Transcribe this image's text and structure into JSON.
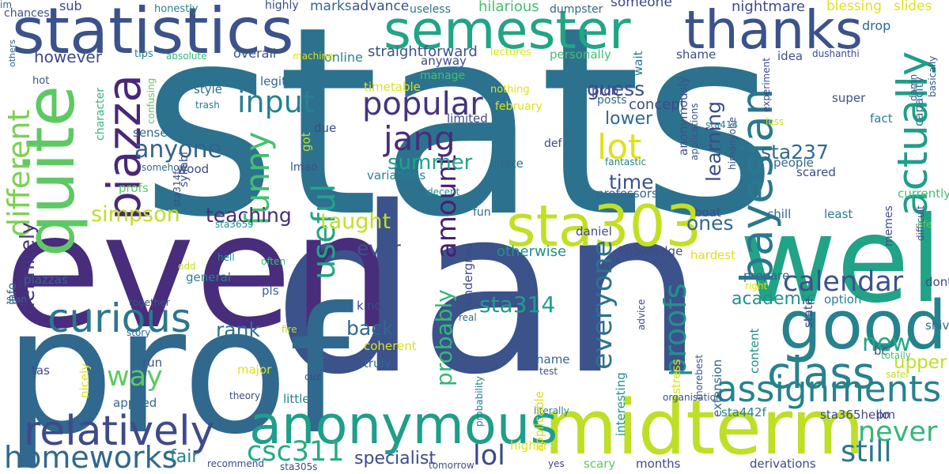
{
  "words": [
    {
      "text": "stats",
      "color": "#2c728e"
    },
    {
      "text": "dan",
      "color": "#3b528b"
    },
    {
      "text": "even",
      "color": "#472d7b"
    },
    {
      "text": "prof",
      "color": "#31688e"
    },
    {
      "text": "midterm",
      "color": "#bddf26"
    },
    {
      "text": "well",
      "color": "#20a386"
    },
    {
      "text": "statistics",
      "color": "#3b528b"
    },
    {
      "text": "quite",
      "color": "#5ec962"
    },
    {
      "text": "semester",
      "color": "#21a585"
    },
    {
      "text": "thanks",
      "color": "#3b528b"
    },
    {
      "text": "anonymous",
      "color": "#1f9e89"
    },
    {
      "text": "sta303",
      "color": "#c2df23"
    },
    {
      "text": "good",
      "color": "#26828e"
    },
    {
      "text": "relatively",
      "color": "#3e4a89"
    },
    {
      "text": "piazza",
      "color": "#482878"
    },
    {
      "text": "bayesian",
      "color": "#2a788e"
    },
    {
      "text": "class",
      "color": "#26828e"
    },
    {
      "text": "curious",
      "color": "#2a788e"
    },
    {
      "text": "actually",
      "color": "#1f9e89"
    },
    {
      "text": "assignments",
      "color": "#26828e"
    },
    {
      "text": "different",
      "color": "#7ad151"
    },
    {
      "text": "funny",
      "color": "#44bf70"
    },
    {
      "text": "homeworks",
      "color": "#31688e"
    },
    {
      "text": "popular",
      "color": "#46337e"
    },
    {
      "text": "jang",
      "color": "#472d7b"
    },
    {
      "text": "input",
      "color": "#26828e"
    },
    {
      "text": "lot",
      "color": "#dde318"
    },
    {
      "text": "still",
      "color": "#2a788e"
    },
    {
      "text": "proofs",
      "color": "#21918c"
    },
    {
      "text": "useful",
      "color": "#21a585"
    },
    {
      "text": "never",
      "color": "#35b779"
    },
    {
      "text": "calendar",
      "color": "#3b528b"
    },
    {
      "text": "csc311",
      "color": "#25ab82"
    },
    {
      "text": "lol",
      "color": "#3e4a89"
    },
    {
      "text": "everyone",
      "color": "#2c728e"
    },
    {
      "text": "way",
      "color": "#5ec962"
    },
    {
      "text": "amount",
      "color": "#481f70"
    },
    {
      "text": "anyone",
      "color": "#33638d"
    },
    {
      "text": "simpson",
      "color": "#bddf26"
    },
    {
      "text": "definitely",
      "color": "#46337e"
    },
    {
      "text": "taught",
      "color": "#c2df23"
    },
    {
      "text": "probably",
      "color": "#35b779"
    },
    {
      "text": "summer",
      "color": "#20a386"
    },
    {
      "text": "teaching",
      "color": "#472d7b"
    },
    {
      "text": "new",
      "color": "#22a884"
    },
    {
      "text": "ever",
      "color": "#3b528b"
    },
    {
      "text": "back",
      "color": "#31688e"
    },
    {
      "text": "rank",
      "color": "#2c728e"
    },
    {
      "text": "sta314",
      "color": "#1f9e89"
    },
    {
      "text": "upper",
      "color": "#c2df23"
    },
    {
      "text": "academic",
      "color": "#21918c"
    },
    {
      "text": "sta237",
      "color": "#31688e"
    },
    {
      "text": "learning",
      "color": "#3e4a89"
    },
    {
      "text": "time",
      "color": "#3b528b"
    },
    {
      "text": "guess",
      "color": "#3e4a89"
    },
    {
      "text": "lower",
      "color": "#31688e"
    },
    {
      "text": "ones",
      "color": "#31688e"
    },
    {
      "text": "otherwise",
      "color": "#21918c"
    },
    {
      "text": "specialist",
      "color": "#3e4a89"
    },
    {
      "text": "fair",
      "color": "#26828e"
    },
    {
      "text": "however",
      "color": "#3e4a89"
    },
    {
      "text": "hilarious",
      "color": "#44bf70"
    },
    {
      "text": "someone",
      "color": "#3e4a89"
    },
    {
      "text": "concept",
      "color": "#3e4a89"
    },
    {
      "text": "nightmare",
      "color": "#3e4a89"
    },
    {
      "text": "blessing",
      "color": "#dde318"
    },
    {
      "text": "slides",
      "color": "#dde318"
    },
    {
      "text": "straightforward",
      "color": "#3b528b"
    },
    {
      "text": "advance",
      "color": "#3b528b"
    },
    {
      "text": "marks",
      "color": "#31688e"
    },
    {
      "text": "online",
      "color": "#26828e"
    },
    {
      "text": "sub",
      "color": "#3e4a89"
    },
    {
      "text": "highly",
      "color": "#3e4a89"
    },
    {
      "text": "useless",
      "color": "#2c728e"
    },
    {
      "text": "dumpster",
      "color": "#31688e"
    },
    {
      "text": "honestly",
      "color": "#26828e"
    },
    {
      "text": "chances",
      "color": "#3b528b"
    },
    {
      "text": "others",
      "color": "#31688e"
    },
    {
      "text": "drop",
      "color": "#31688e"
    },
    {
      "text": "overall",
      "color": "#3b528b"
    },
    {
      "text": "tips",
      "color": "#26828e"
    },
    {
      "text": "absolute",
      "color": "#35b779"
    },
    {
      "text": "machine",
      "color": "#dde318"
    },
    {
      "text": "anyway",
      "color": "#3e4a89"
    },
    {
      "text": "lectures",
      "color": "#dde318"
    },
    {
      "text": "personally",
      "color": "#44bf70"
    },
    {
      "text": "wait",
      "color": "#2a788e"
    },
    {
      "text": "shame",
      "color": "#3e4a89"
    },
    {
      "text": "idea",
      "color": "#3b528b"
    },
    {
      "text": "dushanthi",
      "color": "#3e4a89"
    },
    {
      "text": "basically",
      "color": "#3b528b"
    },
    {
      "text": "hot",
      "color": "#3b528b"
    },
    {
      "text": "legit",
      "color": "#31688e"
    },
    {
      "text": "manage",
      "color": "#44bf70"
    },
    {
      "text": "prob",
      "color": "#3e4a89"
    },
    {
      "text": "nothing",
      "color": "#dde318"
    },
    {
      "text": "character",
      "color": "#35b779"
    },
    {
      "text": "style",
      "color": "#31688e"
    },
    {
      "text": "trash",
      "color": "#2a788e"
    },
    {
      "text": "confusing",
      "color": "#5ec962"
    },
    {
      "text": "timetable",
      "color": "#dde318"
    },
    {
      "text": "posts",
      "color": "#31688e"
    },
    {
      "text": "anonymously",
      "color": "#3b528b"
    },
    {
      "text": "applications",
      "color": "#3b528b"
    },
    {
      "text": "experiment",
      "color": "#3e4a89"
    },
    {
      "text": "super",
      "color": "#3b528b"
    },
    {
      "text": "damn",
      "color": "#3b528b"
    },
    {
      "text": "limited",
      "color": "#3e4a89"
    },
    {
      "text": "february",
      "color": "#dde318"
    },
    {
      "text": "sta414",
      "color": "#26828e"
    },
    {
      "text": "less",
      "color": "#c2df23"
    },
    {
      "text": "fact",
      "color": "#26828e"
    },
    {
      "text": "capacity",
      "color": "#2a788e"
    },
    {
      "text": "sense",
      "color": "#31688e"
    },
    {
      "text": "due",
      "color": "#3e4a89"
    },
    {
      "text": "got",
      "color": "#c2df23"
    },
    {
      "text": "himanyone",
      "color": "#3b528b"
    },
    {
      "text": "def",
      "color": "#3e4a89"
    },
    {
      "text": "somehow",
      "color": "#31688e"
    },
    {
      "text": "syllabi",
      "color": "#3b528b"
    },
    {
      "text": "lmao",
      "color": "#3b528b"
    },
    {
      "text": "wood",
      "color": "#3e4a89"
    },
    {
      "text": "date",
      "color": "#31688e"
    },
    {
      "text": "fantastic",
      "color": "#26828e"
    },
    {
      "text": "people",
      "color": "#31688e"
    },
    {
      "text": "scared",
      "color": "#3e4a89"
    },
    {
      "text": "variations",
      "color": "#26828e"
    },
    {
      "text": "profs",
      "color": "#5ec962"
    },
    {
      "text": "professors",
      "color": "#31688e"
    },
    {
      "text": "decent",
      "color": "#21918c"
    },
    {
      "text": "currently",
      "color": "#44bf70"
    },
    {
      "text": "difficult",
      "color": "#3e4a89"
    },
    {
      "text": "fun",
      "color": "#31688e"
    },
    {
      "text": "chill",
      "color": "#31688e"
    },
    {
      "text": "least",
      "color": "#2a788e"
    },
    {
      "text": "boat",
      "color": "#3e4a89"
    },
    {
      "text": "sta365s",
      "color": "#21918c"
    },
    {
      "text": "sta314f",
      "color": "#3e4a89"
    },
    {
      "text": "memes",
      "color": "#3b528b"
    },
    {
      "text": "life",
      "color": "#5ec962"
    },
    {
      "text": "daniel",
      "color": "#3e4a89"
    },
    {
      "text": "knowledge",
      "color": "#3e4a89"
    },
    {
      "text": "hardest",
      "color": "#dde318"
    },
    {
      "text": "undergrad",
      "color": "#3e4a89"
    },
    {
      "text": "often",
      "color": "#44bf70"
    },
    {
      "text": "hell",
      "color": "#21918c"
    },
    {
      "text": "piazzas",
      "color": "#31688e"
    },
    {
      "text": "odd",
      "color": "#c2df23"
    },
    {
      "text": "general",
      "color": "#26828e"
    },
    {
      "text": "prepare",
      "color": "#31688e"
    },
    {
      "text": "right",
      "color": "#dde318"
    },
    {
      "text": "dont",
      "color": "#3e4a89"
    },
    {
      "text": "info",
      "color": "#31688e"
    },
    {
      "text": "stan",
      "color": "#31688e"
    },
    {
      "text": "together",
      "color": "#3b528b"
    },
    {
      "text": "pls",
      "color": "#31688e"
    },
    {
      "text": "story",
      "color": "#31688e"
    },
    {
      "text": "kind",
      "color": "#3e4a89"
    },
    {
      "text": "option",
      "color": "#26828e"
    },
    {
      "text": "advice",
      "color": "#3e4a89"
    },
    {
      "text": "fire",
      "color": "#c2df23"
    },
    {
      "text": "real",
      "color": "#31688e"
    },
    {
      "text": "content",
      "color": "#21918c"
    },
    {
      "text": "shivon",
      "color": "#31688e"
    },
    {
      "text": "bc",
      "color": "#3e4a89"
    },
    {
      "text": "state",
      "color": "#3e4a89"
    },
    {
      "text": "totally",
      "color": "#44bf70"
    },
    {
      "text": "safer",
      "color": "#c2df23"
    },
    {
      "text": "coherent",
      "color": "#dde318"
    },
    {
      "text": "truly",
      "color": "#31688e"
    },
    {
      "text": "name",
      "color": "#31688e"
    },
    {
      "text": "test",
      "color": "#3b528b"
    },
    {
      "text": "major",
      "color": "#dde318"
    },
    {
      "text": "tas",
      "color": "#3e4a89"
    },
    {
      "text": "cuz",
      "color": "#3e4a89"
    },
    {
      "text": "nicely",
      "color": "#dde318"
    },
    {
      "text": "applied",
      "color": "#31688e"
    },
    {
      "text": "theory",
      "color": "#3e4a89"
    },
    {
      "text": "little",
      "color": "#26828e"
    },
    {
      "text": "stress",
      "color": "#dde318"
    },
    {
      "text": "morebest",
      "color": "#3b528b"
    },
    {
      "text": "extension",
      "color": "#31688e"
    },
    {
      "text": "organisation",
      "color": "#3b528b"
    },
    {
      "text": "sta442f",
      "color": "#26828e"
    },
    {
      "text": "sta365hello",
      "color": "#3e4a89"
    },
    {
      "text": "pm",
      "color": "#3e4a89"
    },
    {
      "text": "literally",
      "color": "#26828e"
    },
    {
      "text": "interesting",
      "color": "#21918c"
    },
    {
      "text": "probability",
      "color": "#2a788e"
    },
    {
      "text": "applicable",
      "color": "#dde318"
    },
    {
      "text": "scary",
      "color": "#5ec962"
    },
    {
      "text": "months",
      "color": "#3e4a89"
    },
    {
      "text": "derivations",
      "color": "#3e4a89"
    },
    {
      "text": "tomorrow",
      "color": "#3b528b"
    },
    {
      "text": "sta305s",
      "color": "#3e4a89"
    },
    {
      "text": "recommend",
      "color": "#3e4a89"
    },
    {
      "text": "higher",
      "color": "#dde318"
    },
    {
      "text": "yes",
      "color": "#3e4a89"
    },
    {
      "text": "run",
      "color": "#3b528b"
    },
    {
      "text": "im",
      "color": "#31688e"
    }
  ]
}
